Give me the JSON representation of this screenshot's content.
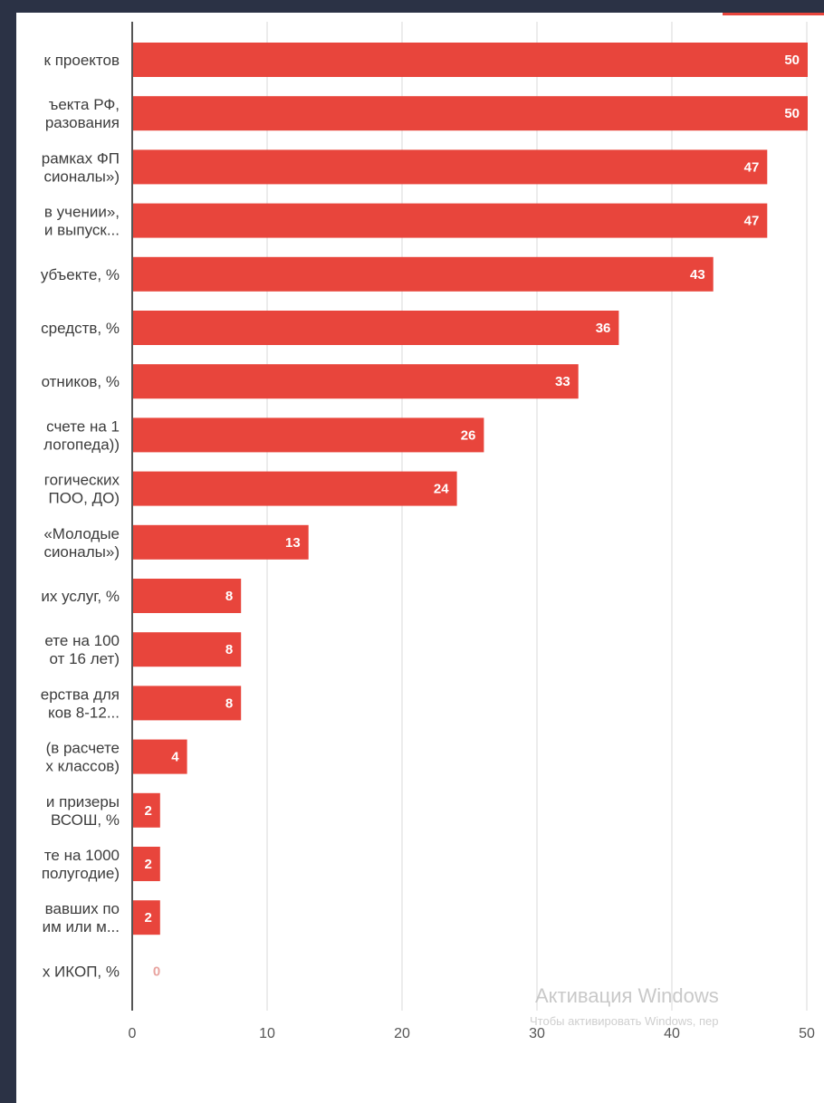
{
  "window": {
    "watermark_title": "Активация Windows",
    "watermark_subtitle": "Чтобы активировать Windows, пер"
  },
  "chart_data": {
    "type": "bar",
    "orientation": "horizontal",
    "bar_color": "#e8453c",
    "grid": true,
    "xlim": [
      0,
      50
    ],
    "x_ticks": [
      0,
      10,
      20,
      30,
      40,
      50
    ],
    "categories": [
      [
        "к проектов"
      ],
      [
        "ъекта РФ,",
        "разования"
      ],
      [
        "рамках ФП",
        "сионалы»)"
      ],
      [
        "в учении»,",
        "и выпуск..."
      ],
      [
        "убъекте, %"
      ],
      [
        "средств, %"
      ],
      [
        "отников, %"
      ],
      [
        "счете на 1",
        "логопеда))"
      ],
      [
        "гогических",
        "ПОО, ДО)"
      ],
      [
        "«Молодые",
        "сионалы»)"
      ],
      [
        "их услуг, %"
      ],
      [
        "ете на 100",
        "от 16 лет)"
      ],
      [
        "ерства для",
        "ков 8-12..."
      ],
      [
        "(в расчете",
        "х классов)"
      ],
      [
        "и призеры",
        "ВСОШ, %"
      ],
      [
        "те на 1000",
        "полугодие)"
      ],
      [
        "вавших по",
        "им или м..."
      ],
      [
        "х ИКОП, %"
      ]
    ],
    "values": [
      50,
      50,
      47,
      47,
      43,
      36,
      33,
      26,
      24,
      13,
      8,
      8,
      8,
      4,
      2,
      2,
      2,
      0
    ]
  }
}
